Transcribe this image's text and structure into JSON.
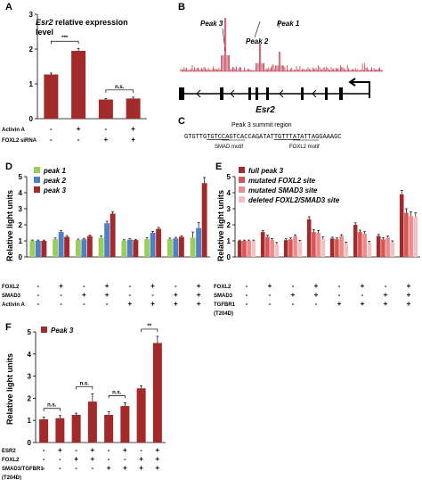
{
  "figure": {
    "panel_a": {
      "label": "A",
      "title_italic": "Esr2",
      "title_rest": " relative expression",
      "title_line2": "level",
      "sig1": "***",
      "sig2": "n.s.",
      "row_labels": [
        "Activin A",
        "FOXL2 siRNA"
      ],
      "row_signs": [
        [
          "-",
          "+",
          "-",
          "+"
        ],
        [
          "-",
          "-",
          "+",
          "+"
        ]
      ]
    },
    "panel_b": {
      "label": "B",
      "peaks": [
        "Peak 3",
        "Peak 2",
        "Peak 1"
      ],
      "gene": "Esr2"
    },
    "panel_c": {
      "label": "C",
      "title": "Peak 3 summit region",
      "seq_before": "GTGTTG",
      "smad_motif": "TGTCCA",
      "seq_mid": "GTCACCAGATAT",
      "foxl2_motif": "TGTTTAT",
      "seq_after": "ATTAGGAAAGC",
      "smad_label": "SMAD motif",
      "foxl2_label": "FOXL2 motif"
    },
    "panel_d": {
      "label": "D",
      "ylabel": "Relative light units",
      "legend": [
        "peak 1",
        "peak 2",
        "peak 3"
      ],
      "row_labels": [
        "FOXL2",
        "SMAD3",
        "Activin A"
      ],
      "row_signs": [
        [
          "-",
          "+",
          "-",
          "+",
          "-",
          "+",
          "-",
          "+"
        ],
        [
          "-",
          "-",
          "+",
          "+",
          "-",
          "-",
          "+",
          "+"
        ],
        [
          "-",
          "-",
          "-",
          "-",
          "+",
          "+",
          "+",
          "+"
        ]
      ]
    },
    "panel_e": {
      "label": "E",
      "ylabel": "Relative light units",
      "legend": [
        "full peak 3",
        "mutated FOXL2 site",
        "mutated SMAD3 site",
        "deleted FOXL2/SMAD3 site"
      ],
      "row_labels": [
        "FOXL2",
        "SMAD3",
        "TGFBR1",
        "(T204D)"
      ],
      "row_signs": [
        [
          "-",
          "+",
          "-",
          "+",
          "-",
          "+",
          "-",
          "+"
        ],
        [
          "-",
          "-",
          "+",
          "+",
          "-",
          "-",
          "+",
          "+"
        ],
        [
          "-",
          "-",
          "-",
          "-",
          "+",
          "+",
          "+",
          "+"
        ]
      ]
    },
    "panel_f": {
      "label": "F",
      "ylabel": "Relative light units",
      "legend": [
        "Peak 3"
      ],
      "row_labels": [
        "ESR2",
        "FOXL2",
        "SMAD3/TGFBR1",
        "(T204D)"
      ],
      "row_signs": [
        [
          "-",
          "+",
          "-",
          "+",
          "-",
          "+",
          "-",
          "+"
        ],
        [
          "-",
          "-",
          "+",
          "+",
          "-",
          "-",
          "+",
          "+"
        ],
        [
          "-",
          "-",
          "-",
          "-",
          "+",
          "+",
          "+",
          "+"
        ]
      ]
    }
  },
  "colors": {
    "dark_red": "#a32a2a",
    "peak1": "#9acd5a",
    "peak2": "#4f7fc4",
    "peak3": "#a32a2a",
    "e_series": [
      "#a32a2a",
      "#d85555",
      "#ea8c8c",
      "#f3c1c1"
    ],
    "track": "#c0394f"
  },
  "chart_data": [
    {
      "panel": "A",
      "type": "bar",
      "categories": [
        "1",
        "2",
        "3",
        "4"
      ],
      "values": [
        1.27,
        1.95,
        0.55,
        0.58
      ],
      "errors": [
        0.04,
        0.07,
        0.03,
        0.04
      ],
      "ylim": [
        0,
        3
      ],
      "yticks": [
        0,
        1,
        2,
        3
      ],
      "significance": [
        {
          "from": 0,
          "to": 1,
          "label": "***"
        },
        {
          "from": 2,
          "to": 3,
          "label": "n.s."
        }
      ]
    },
    {
      "panel": "D",
      "type": "bar",
      "categories": [
        "1",
        "2",
        "3",
        "4",
        "5",
        "6",
        "7",
        "8"
      ],
      "series": [
        {
          "name": "peak 1",
          "values": [
            1.0,
            1.1,
            1.05,
            1.2,
            1.02,
            1.1,
            1.1,
            1.2
          ]
        },
        {
          "name": "peak 2",
          "values": [
            1.0,
            1.55,
            1.1,
            2.1,
            1.08,
            1.5,
            1.15,
            1.8
          ]
        },
        {
          "name": "peak 3",
          "values": [
            1.0,
            1.25,
            1.3,
            2.7,
            1.05,
            1.75,
            1.25,
            4.6
          ]
        }
      ],
      "errors": [
        0.05,
        0.08,
        0.06,
        0.12,
        0.05,
        0.09,
        0.07,
        0.35
      ],
      "ylim": [
        0,
        5
      ],
      "yticks": [
        0,
        1,
        2,
        3,
        4,
        5
      ]
    },
    {
      "panel": "E",
      "type": "bar",
      "categories": [
        "1",
        "2",
        "3",
        "4",
        "5",
        "6",
        "7",
        "8"
      ],
      "series": [
        {
          "name": "full peak 3",
          "values": [
            1.0,
            1.55,
            1.05,
            2.35,
            1.15,
            2.0,
            1.3,
            3.9
          ]
        },
        {
          "name": "mutated FOXL2 site",
          "values": [
            1.0,
            1.25,
            1.1,
            1.55,
            1.1,
            1.55,
            1.1,
            2.75
          ]
        },
        {
          "name": "mutated SMAD3 site",
          "values": [
            1.0,
            1.05,
            1.3,
            1.5,
            1.3,
            1.45,
            1.2,
            2.55
          ]
        },
        {
          "name": "deleted FOXL2/SMAD3 site",
          "values": [
            1.0,
            0.8,
            0.95,
            1.1,
            0.85,
            0.85,
            0.9,
            2.5
          ]
        }
      ],
      "errors": [
        0.05,
        0.1,
        0.08,
        0.15,
        0.08,
        0.12,
        0.1,
        0.25
      ],
      "ylim": [
        0,
        5
      ],
      "yticks": [
        0,
        1,
        2,
        3,
        4,
        5
      ]
    },
    {
      "panel": "F",
      "type": "bar",
      "categories": [
        "1",
        "2",
        "3",
        "4",
        "5",
        "6",
        "7",
        "8"
      ],
      "series": [
        {
          "name": "Peak 3",
          "values": [
            1.05,
            1.1,
            1.25,
            1.85,
            1.25,
            1.65,
            2.45,
            4.5
          ]
        }
      ],
      "errors": [
        0.1,
        0.12,
        0.08,
        0.35,
        0.15,
        0.15,
        0.12,
        0.3
      ],
      "ylim": [
        0,
        5
      ],
      "yticks": [
        0,
        1,
        2,
        3,
        4,
        5
      ],
      "significance": [
        {
          "from": 0,
          "to": 1,
          "label": "n.s."
        },
        {
          "from": 2,
          "to": 3,
          "label": "n.s."
        },
        {
          "from": 4,
          "to": 5,
          "label": "n.s."
        },
        {
          "from": 6,
          "to": 7,
          "label": "**"
        }
      ]
    }
  ]
}
